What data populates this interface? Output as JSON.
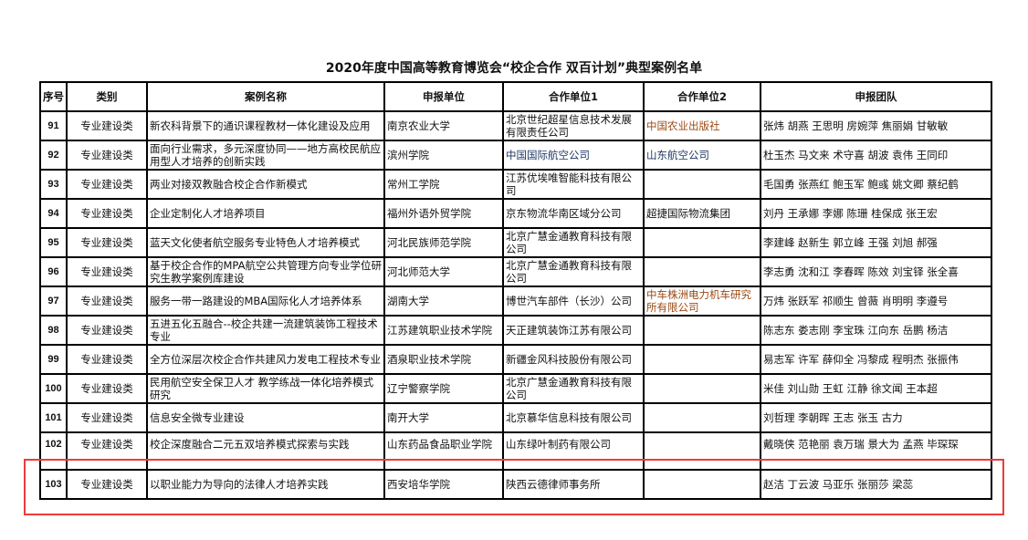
{
  "title": "2020年度中国高等教育博览会“校企合作 双百计划”典型案例名单",
  "headers": [
    "序号",
    "类别",
    "案例名称",
    "申报单位",
    "合作单位1",
    "合作单位2",
    "申报团队"
  ],
  "rows": [
    {
      "no": "91",
      "category": "专业建设类",
      "name": "新农科背景下的通识课程教材一体化建设及应用",
      "applicant": "南京农业大学",
      "partner1": "北京世纪超星信息技术发展有限责任公司",
      "partner2": "中国农业出版社",
      "team": "张炜 胡燕 王思明 房婉萍 焦丽娟 甘敏敏"
    },
    {
      "no": "92",
      "category": "专业建设类",
      "name": "面向行业需求，多元深度协同——地方高校民航应用型人才培养的创新实践",
      "applicant": "滨州学院",
      "partner1": "中国国际航空公司",
      "partner2": "山东航空公司",
      "team": "杜玉杰 马文来 术守喜 胡波 袁伟 王同印"
    },
    {
      "no": "93",
      "category": "专业建设类",
      "name": "两业对接双教融合校企合作新模式",
      "applicant": "常州工学院",
      "partner1": "江苏优埃唯智能科技有限公司",
      "partner2": "",
      "team": "毛国勇 张燕红 鲍玉军 鲍彧 姚文卿 蔡纪鹤"
    },
    {
      "no": "94",
      "category": "专业建设类",
      "name": "企业定制化人才培养项目",
      "applicant": "福州外语外贸学院",
      "partner1": "京东物流华南区域分公司",
      "partner2": "超捷国际物流集团",
      "team": "刘丹 王承娜 李娜 陈珊 桂保成 张王宏"
    },
    {
      "no": "95",
      "category": "专业建设类",
      "name": "蓝天文化使者航空服务专业特色人才培养模式",
      "applicant": "河北民族师范学院",
      "partner1": "北京广慧金通教育科技有限公司",
      "partner2": "",
      "team": "李建峰 赵新生 郭立峰 王强 刘旭 郝强"
    },
    {
      "no": "96",
      "category": "专业建设类",
      "name": "基于校企合作的MPA航空公共管理方向专业学位研究生教学案例库建设",
      "applicant": "河北师范大学",
      "partner1": "北京广慧金通教育科技有限公司",
      "partner2": "",
      "team": "李志勇 沈和江 李春晖 陈效 刘宝铎 张全喜"
    },
    {
      "no": "97",
      "category": "专业建设类",
      "name": "服务一带一路建设的MBA国际化人才培养体系",
      "applicant": "湖南大学",
      "partner1": "博世汽车部件（长沙）公司",
      "partner2": "中车株洲电力机车研究所有限公司",
      "team": "万炜 张跃军 祁顺生 曾薇 肖明明 李遵号"
    },
    {
      "no": "98",
      "category": "专业建设类",
      "name": "五进五化五融合--校企共建一流建筑装饰工程技术专业",
      "applicant": "江苏建筑职业技术学院",
      "partner1": "天正建筑装饰江苏有限公司",
      "partner2": "",
      "team": "陈志东 娄志刚 李宝珠 江向东 岳鹏 杨洁"
    },
    {
      "no": "99",
      "category": "专业建设类",
      "name": "全方位深层次校企合作共建风力发电工程技术专业",
      "applicant": "酒泉职业技术学院",
      "partner1": "新疆金风科技股份有限公司",
      "partner2": "",
      "team": "易志军 许军 薛仰全 冯黎成 程明杰 张振伟"
    },
    {
      "no": "100",
      "category": "专业建设类",
      "name": "民用航空安全保卫人才 教学练战一体化培养模式研究",
      "applicant": "辽宁警察学院",
      "partner1": "北京广慧金通教育科技有限公司",
      "partner2": "",
      "team": "米佳 刘山勋 王虹 江静 徐文闻 王本超"
    },
    {
      "no": "101",
      "category": "专业建设类",
      "name": "信息安全微专业建设",
      "applicant": "南开大学",
      "partner1": "北京慕华信息科技有限公司",
      "partner2": "",
      "team": "刘哲理 李朝晖 王志 张玉 古力"
    },
    {
      "no": "102",
      "category": "专业建设类",
      "name": "校企深度融合二元五双培养模式探索与实践",
      "applicant": "山东药品食品职业学院",
      "partner1": "山东绿叶制药有限公司",
      "partner2": "",
      "team": "戴晓侠 范艳丽 袁万瑞 景大为 孟燕 毕琛琛"
    },
    {
      "no": "103",
      "category": "专业建设类",
      "name": "以职业能力为导向的法律人才培养实践",
      "applicant": "西安培华学院",
      "partner1": "陕西云德律师事务所",
      "partner2": "",
      "team": "赵洁 丁云波 马亚乐 张丽莎 梁蕊"
    }
  ],
  "colors": {
    "highlight_box": "#f03a3a",
    "partner_blue": "#1f3864",
    "partner_orange": "#9b4a14"
  }
}
